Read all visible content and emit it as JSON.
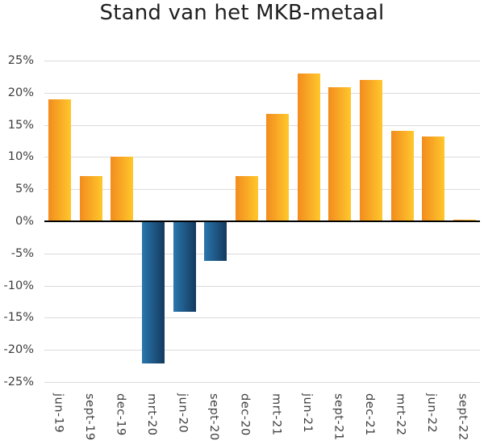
{
  "page": {
    "background": "#ffffff"
  },
  "chart_data": {
    "type": "bar",
    "title": "Stand van het MKB-metaal",
    "xlabel": "",
    "ylabel": "",
    "unit": "%",
    "categories": [
      "jun-19",
      "sept-19",
      "dec-19",
      "mrt-20",
      "jun-20",
      "sept-20",
      "dec-20",
      "mrt-21",
      "jun-21",
      "sept-21",
      "dec-21",
      "mrt-22",
      "jun-22",
      "sept-22"
    ],
    "values": [
      19,
      7,
      10,
      -22,
      -14,
      -6,
      7,
      16.7,
      23,
      20.8,
      22,
      14.1,
      13.2,
      0.2
    ],
    "ylim": [
      -25,
      25
    ],
    "y_tick_step": 5,
    "y_tick_labels": [
      "25%",
      "20%",
      "15%",
      "10%",
      "5%",
      "0%",
      "-5%",
      "-10%",
      "-15%",
      "-20%",
      "-25%"
    ],
    "grid": "horizontal",
    "legend": "none",
    "colors": {
      "positive_bar_gradient_left": "#F28C1E",
      "positive_bar_gradient_right": "#FFC72C",
      "negative_bar_gradient_left": "#2A77AD",
      "negative_bar_gradient_right": "#14395E",
      "gridline": "#DBDBDB",
      "zero_axis": "#000000",
      "tick_label": "#3D3D3D",
      "title": "#1F1F1F"
    }
  }
}
